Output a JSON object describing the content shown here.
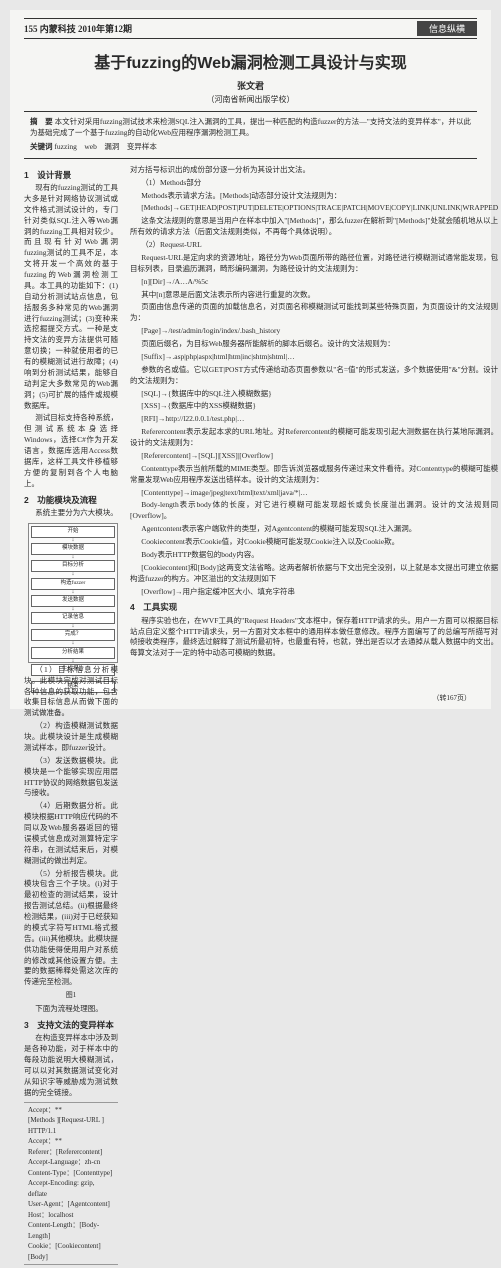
{
  "header": {
    "page_num": "155",
    "journal": "内蒙科技",
    "issue": "2010年第12期",
    "category": "信息纵横"
  },
  "title": "基于fuzzing的Web漏洞检测工具设计与实现",
  "author": "张文君",
  "affiliation": "（河南省新闻出版学校）",
  "abstract": {
    "label_a": "摘　要",
    "text_a": "本文针对采用fuzzing测试技术来检测SQL注入漏洞的工具，提出一种匹配的构造fuzzer的方法—\"支持文法的变异样本\"，并以此为基础完成了一个基于fuzzing的自动化Web应用程序漏洞检测工具。",
    "label_k": "关键词",
    "text_k": "fuzzing　web　漏洞　变异样本"
  },
  "left": {
    "s1_head": "1　设计背景",
    "s1_p1": "现有的fuzzing测试的工具大多是针对网络协议测试或文件格式测试设计的，专门针对类似SQL注入等Web漏洞的fuzzing工具相对较少。而且现有针对Web漏洞fuzzing测试的工具不足，本文将开发一个高效的基于fuzzing的Web漏洞检测工具。本工具的功能如下：(1)自动分析测试站点信息，包括服务多种常见的Web漏洞进行fuzzing测试；(3)变种来选挖掘提交方式。一种是支持文法的变异方法提供可随意切换；一种就使用者的已有的模糊测试进行故障；(4)响到分析测试结果，能够自动判定大多数常见的Web漏洞；(5)可扩展的插件或规模数据库。",
    "s1_p2": "测试目标支持各种系统，但测试系统本身选择Windows，选择C#作为开发语言，数据库选用Access数据库，这样工具文件移植够方便的复制到各个人电脑上。",
    "s2_head": "2　功能模块及流程",
    "s2_p1": "系统主要分为六大模块。",
    "s2_li1": "（1）目标信息分析模块。此模块完成对测试目标各种信息的获取功能，包含收集目标信息从而做下面的测试做准备。",
    "s2_li2": "（2）构造模糊测试数据块。此模块设计是生成模糊测试样本，即fuzzer设计。",
    "s2_li3": "（3）发送数据模块。此模块是一个能够实现应用层HTTP协议的网络数据包发送与接收。",
    "s2_li4": "（4）后期数据分析。此模块根据HTTP响应代码的不同以及Web服务器返回的错误模式信息成对测算特定字符串，在测试结束后，对模糊测试的做出判定。",
    "s2_li5": "（5）分析报告模块。此模块包含三个子块。(i)对于最初检查的测试结果，设计报告测试总结。(ii)根据最终检测结果，(iii)对于已经获知的模式字符写HTML格式报告。(iii)其他模块。此模块提供功能使得使用用户对系统的修改或其他设置方便。主要的数据稀释处需这次库的传递完至检测。",
    "s2_p2": "下面为流程处理图。",
    "s3_head": "3　支持文法的变异样本",
    "s3_p1": "在构造变异样本中涉及到是各种功能，对于样本中的每段功能说明大模糊测试，可以以对其数据测试变化对从知识字等威胁成为测试数据的完全链接。",
    "list": {
      "l1": "Accept：**",
      "l2": "[Methods ][Request-URL ] HTTP/1.1",
      "l3": "Accept：**",
      "l4": "Referer：[Referercontent]",
      "l5": "Accept-Language：zh-cn",
      "l6": "Content-Type：[Contenttype]",
      "l7": "Accept-Encoding: gzip, deflate",
      "l8": "User-Agent：[Agentcontent]",
      "l9": "Host：localhost",
      "l10": "Content-Length：[Body-Length]",
      "l11": "Cookie：[Cookiecontent]",
      "l12": "[Body]"
    }
  },
  "figure": {
    "n1": "开始",
    "n2": "模块数据",
    "n3": "目标分析",
    "n4": "构造fuzzer",
    "n5": "发送数据",
    "n6": "记录信息",
    "n7": "完成？",
    "n8": "分析结果",
    "n9": "生成报告",
    "n10": "结束",
    "caption": "图1"
  },
  "right": {
    "p1": "对方括号标识出的成份部分逐一分析为其设计出文法。",
    "li1": "（1）Methods部分",
    "p2": "Methods表示请求方法。[Methods]动态部分设计文法规则为：",
    "p3": "[Methods]→GET|HEAD|POST|PUT|DELETE|OPTIONS|TRACE|PATCH|MOVE|COPY|LINK|UNLINK|WRAPPED",
    "p4": "这条文法规则的意思是当用户在样本中加入\"[Methods]\"，那么fuzzer在解析到\"[Methods]\"处就会随机地从以上所有效的请求方法（后面文法规则类似，不再每个具体说明）。",
    "li2": "（2）Request-URL",
    "p5": "Request-URL是定向求的资源地址，路径分为Web页面所带的路径位置，对路径进行模糊测试通常能发现，包目标列表，目录遍历漏洞，畸形编码漏洞，为路径设计的文法规则为：",
    "p6": "[n][Dir]→/A…A/%5c",
    "p7": "其中[n]意思是后面文法表示所内容进行重复的次数。",
    "p8": "页面由信息传递的页面的加载信息名，对页面名称模糊测试可能找到某些特殊页面，为页面设计的文法规则为：",
    "p9": "[Page]→/test/admin/login/index/.bash_history",
    "p10": "页面后缀名，为目标Web服务器所能解析的脚本后缀名。设计的文法规则为：",
    "p11": "[Suffix]→.asp|php|aspx|html|htm|inc|shtm|shtml|…",
    "p12": "参数的名或值。它以GET|POST方式传递给动态页面参数以\"名=值\"的形式发送，多个数据使用\"&\"分割。设计的文法规则为：",
    "p13": "[SQL]→{数据库中的SQL注入模糊数据}",
    "p14": "[XSS]→{数据库中的XSS模糊数据}",
    "p15": "[RFI]→http://l22.0.0.1/test.php|…",
    "p16": "Referercontent表示发起本求的URL地址。对Referercontent的模糊可能发现引起大测数据在执行某地际漏洞。设计的文法规则为：",
    "p17": "[Referercontent]→[SQL]|[XSS]|[Overflow]",
    "p18": "Contenttype表示当前所载的MIME类型。即告诉浏览器或服务传递过来文件看待。对Contenttype的模糊可能模常量发现Web应用程序发送出错样本。设计的文法规则为：",
    "p19": "[Contenttype]→image/jpeg|text/html|text/xml|java/*|…",
    "p20": "Body-length表示body体的长度，对它进行模糊可能发现超长或负长度溢出漏洞。设计的文法规则同[Overflow]。",
    "p21": "Agentcontent表示客户端软件的类型，对Agentcontent的模糊可能发现SQL注入漏洞。",
    "p22": "Cookiecontent表示Cookie值，对Cookie模糊可能发现Cookie注入以及Cookie欺。",
    "p23": "Body表示HTTP数据包的body内容。",
    "p24": "[Cookiecontent]和[Body]这两变文法省略。这两者解析依据与下文出完全没别，以上就是本文提出可建立依据构造fuzzer的构方。冲区溢出的文法规则如下",
    "p25": "[Overflow]→用户指定缓冲区大小、填充字符串",
    "s4_head": "4　工具实现",
    "p26": "程序实验也在，在WVF工具的\"Request Headers\"文本框中，保存着HTTP请求的头。用户一方面可以根据目标站点自定义整个HTTP请求头，另一方面对文本框中的通用样本做任意修改。程序方面编写了的总编写所描写对帧接收类程序，最终选过解释了测试所最初特，也最重有特，也就，弹出是否以才去通掉从载人数据中的文出。每算文法对于一定的特中动态可模糊的数据。",
    "foot": "（转167页）"
  }
}
